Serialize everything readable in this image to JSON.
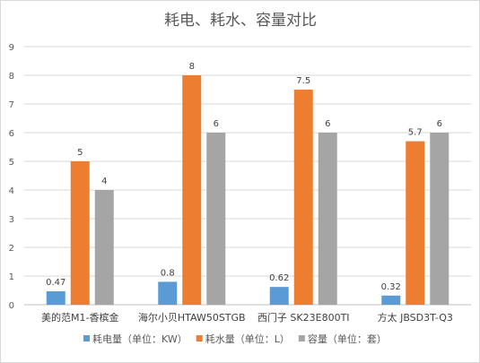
{
  "chart_data": {
    "type": "bar",
    "title": "耗电、耗水、容量对比",
    "categories": [
      "美的范M1-香槟金",
      "海尔小贝HTAW50STGB",
      "西门子 SK23E800TI",
      "方太 JBSD3T-Q3"
    ],
    "series": [
      {
        "name": "耗电量（单位：KW）",
        "color": "#5b9bd5",
        "values": [
          0.47,
          0.8,
          0.62,
          0.32
        ],
        "labels": [
          "0.47",
          "0.8",
          "0.62",
          "0.32"
        ]
      },
      {
        "name": "耗水量（单位：L）",
        "color": "#ed7d31",
        "values": [
          5,
          8,
          7.5,
          5.7
        ],
        "labels": [
          "5",
          "8",
          "7.5",
          "5.7"
        ]
      },
      {
        "name": "容量（单位：套）",
        "color": "#a5a5a5",
        "values": [
          4,
          6,
          6,
          6
        ],
        "labels": [
          "4",
          "6",
          "6",
          "6"
        ]
      }
    ],
    "ylim": [
      0,
      9
    ],
    "yticks": [
      "0",
      "1",
      "2",
      "3",
      "4",
      "5",
      "6",
      "7",
      "8",
      "9"
    ],
    "xlabel": "",
    "ylabel": "",
    "grid": true,
    "legend_position": "bottom"
  }
}
